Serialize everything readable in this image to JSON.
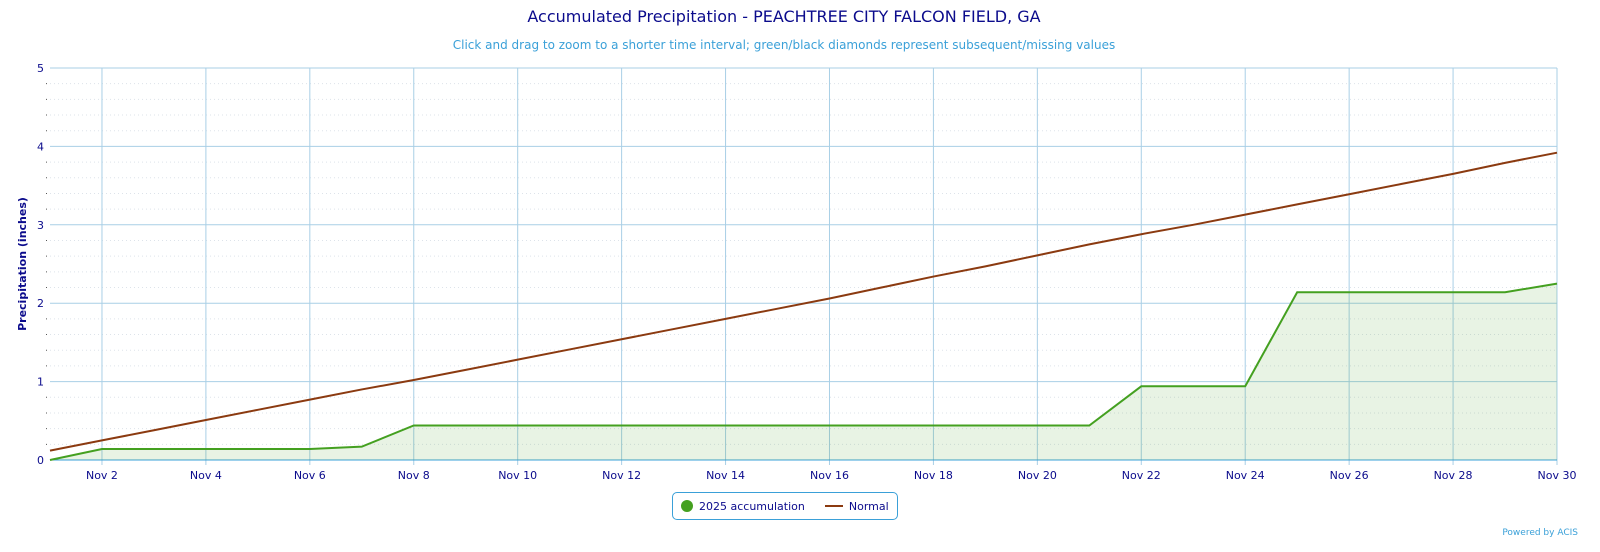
{
  "chart_data": {
    "type": "line",
    "title": "Accumulated Precipitation - PEACHTREE CITY FALCON FIELD, GA",
    "subtitle": "Click and drag to zoom to a shorter time interval; green/black diamonds represent subsequent/missing values",
    "ylabel": "Precipitation (inches)",
    "xlabel": "",
    "ylim": [
      0,
      5
    ],
    "yticks": [
      0,
      1,
      2,
      3,
      4,
      5
    ],
    "x": [
      "Nov 1",
      "Nov 2",
      "Nov 3",
      "Nov 4",
      "Nov 5",
      "Nov 6",
      "Nov 7",
      "Nov 8",
      "Nov 9",
      "Nov 10",
      "Nov 11",
      "Nov 12",
      "Nov 13",
      "Nov 14",
      "Nov 15",
      "Nov 16",
      "Nov 17",
      "Nov 18",
      "Nov 19",
      "Nov 20",
      "Nov 21",
      "Nov 22",
      "Nov 23",
      "Nov 24",
      "Nov 25",
      "Nov 26",
      "Nov 27",
      "Nov 28",
      "Nov 29",
      "Nov 30"
    ],
    "xtick_labels": [
      "Nov 2",
      "Nov 4",
      "Nov 6",
      "Nov 8",
      "Nov 10",
      "Nov 12",
      "Nov 14",
      "Nov 16",
      "Nov 18",
      "Nov 20",
      "Nov 22",
      "Nov 24",
      "Nov 26",
      "Nov 28",
      "Nov 30"
    ],
    "series": [
      {
        "name": "2025 accumulation",
        "color": "#44a020",
        "type": "area",
        "values": [
          0,
          0.14,
          0.14,
          0.14,
          0.14,
          0.14,
          0.17,
          0.44,
          0.44,
          0.44,
          0.44,
          0.44,
          0.44,
          0.44,
          0.44,
          0.44,
          0.44,
          0.44,
          0.44,
          0.44,
          0.44,
          0.94,
          0.94,
          0.94,
          2.14,
          2.14,
          2.14,
          2.14,
          2.14,
          2.25
        ]
      },
      {
        "name": "Normal",
        "color": "#8b3a10",
        "type": "line",
        "values": [
          0.12,
          0.25,
          0.38,
          0.51,
          0.64,
          0.77,
          0.9,
          1.02,
          1.15,
          1.28,
          1.41,
          1.54,
          1.67,
          1.8,
          1.93,
          2.06,
          2.2,
          2.34,
          2.47,
          2.61,
          2.75,
          2.88,
          3.0,
          3.13,
          3.26,
          3.39,
          3.52,
          3.65,
          3.79,
          3.92
        ]
      }
    ],
    "grid": true,
    "legend_position": "bottom-center"
  },
  "credit": "Powered by ACIS"
}
